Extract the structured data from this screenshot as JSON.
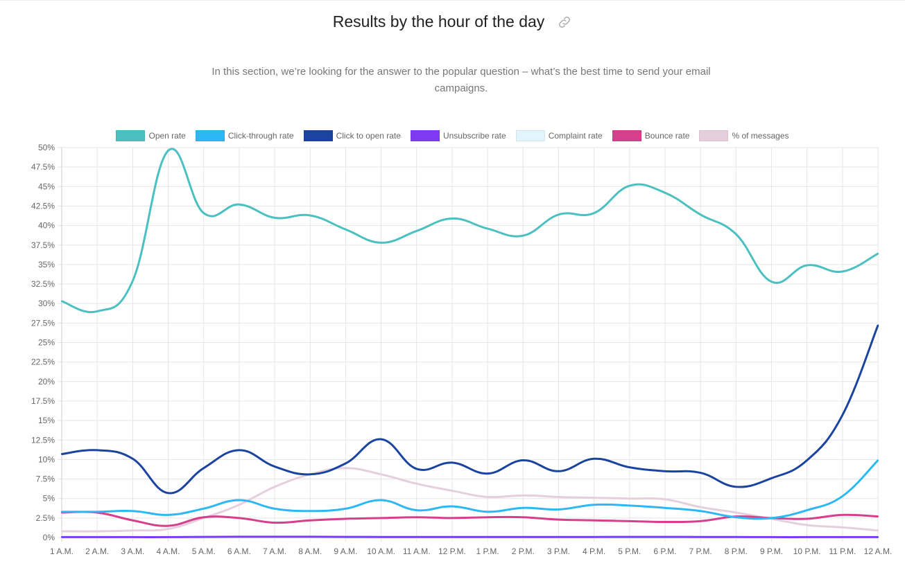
{
  "header": {
    "title": "Results by the hour of the day",
    "link_icon": "link-icon",
    "subtitle": "In this section, we’re looking for the answer to the popular question – what’s the best time to send your email campaigns."
  },
  "chart_data": {
    "type": "line",
    "title": "",
    "xlabel": "",
    "ylabel": "",
    "ylim": [
      0,
      50
    ],
    "y_step": 2.5,
    "y_ticks": [
      "0%",
      "2.5%",
      "5%",
      "7.5%",
      "10%",
      "12.5%",
      "15%",
      "17.5%",
      "20%",
      "22.5%",
      "25%",
      "27.5%",
      "30%",
      "32.5%",
      "35%",
      "37.5%",
      "40%",
      "42.5%",
      "45%",
      "47.5%",
      "50%"
    ],
    "grid": true,
    "legend_position": "top",
    "categories": [
      "1 A.M.",
      "2 A.M.",
      "3 A.M.",
      "4 A.M.",
      "5 A.M.",
      "6 A.M.",
      "7 A.M.",
      "8 A.M.",
      "9 A.M.",
      "10 A.M.",
      "11 A.M.",
      "12 P.M.",
      "1 P.M.",
      "2 P.M.",
      "3 P.M.",
      "4 P.M.",
      "5 P.M.",
      "6 P.M.",
      "7 P.M.",
      "8 P.M.",
      "9 P.M.",
      "10 P.M.",
      "11 P.M.",
      "12 A.M."
    ],
    "series": [
      {
        "name": "Open rate",
        "color": "#4bc0c0",
        "values": [
          30.3,
          29.0,
          32.9,
          49.6,
          41.6,
          42.7,
          41.0,
          41.3,
          39.5,
          37.8,
          39.3,
          40.9,
          39.6,
          38.7,
          41.4,
          41.6,
          45.1,
          44.2,
          41.4,
          38.9,
          32.8,
          34.9,
          34.1,
          36.4
        ]
      },
      {
        "name": "Click-through rate",
        "color": "#2bb8f5",
        "values": [
          3.3,
          3.3,
          3.4,
          2.9,
          3.7,
          4.8,
          3.7,
          3.4,
          3.7,
          4.8,
          3.5,
          4.0,
          3.3,
          3.8,
          3.6,
          4.2,
          4.1,
          3.8,
          3.4,
          2.6,
          2.5,
          3.5,
          5.3,
          9.9
        ]
      },
      {
        "name": "Click to open rate",
        "color": "#1b44a0",
        "values": [
          10.7,
          11.2,
          10.1,
          5.7,
          8.9,
          11.2,
          9.1,
          8.1,
          9.5,
          12.6,
          8.8,
          9.6,
          8.2,
          9.9,
          8.5,
          10.1,
          9.0,
          8.5,
          8.3,
          6.5,
          7.6,
          9.9,
          15.7,
          27.2
        ]
      },
      {
        "name": "Unsubscribe rate",
        "color": "#7e3af2",
        "values": [
          0.05,
          0.05,
          0.05,
          0.05,
          0.08,
          0.1,
          0.1,
          0.1,
          0.08,
          0.07,
          0.07,
          0.07,
          0.07,
          0.07,
          0.07,
          0.07,
          0.08,
          0.08,
          0.07,
          0.07,
          0.05,
          0.05,
          0.05,
          0.05
        ]
      },
      {
        "name": "Complaint rate",
        "color": "#e3f4fd",
        "values": [
          0,
          0,
          0,
          0,
          0,
          0,
          0,
          0,
          0,
          0,
          0,
          0,
          0,
          0,
          0,
          0,
          0,
          0,
          0,
          0,
          0,
          0,
          0,
          0
        ]
      },
      {
        "name": "Bounce rate",
        "color": "#d63f8c",
        "values": [
          3.2,
          3.2,
          2.2,
          1.5,
          2.6,
          2.5,
          1.9,
          2.2,
          2.4,
          2.5,
          2.6,
          2.5,
          2.6,
          2.6,
          2.3,
          2.2,
          2.1,
          2.0,
          2.1,
          2.7,
          2.5,
          2.4,
          2.9,
          2.7
        ]
      },
      {
        "name": "% of messages",
        "color": "#e6cfdc",
        "values": [
          0.8,
          0.8,
          0.9,
          1.1,
          2.5,
          4.2,
          6.5,
          8.1,
          8.9,
          8.1,
          6.9,
          6.0,
          5.2,
          5.4,
          5.2,
          5.1,
          5.0,
          4.9,
          3.9,
          3.2,
          2.4,
          1.6,
          1.3,
          0.9
        ]
      }
    ]
  }
}
